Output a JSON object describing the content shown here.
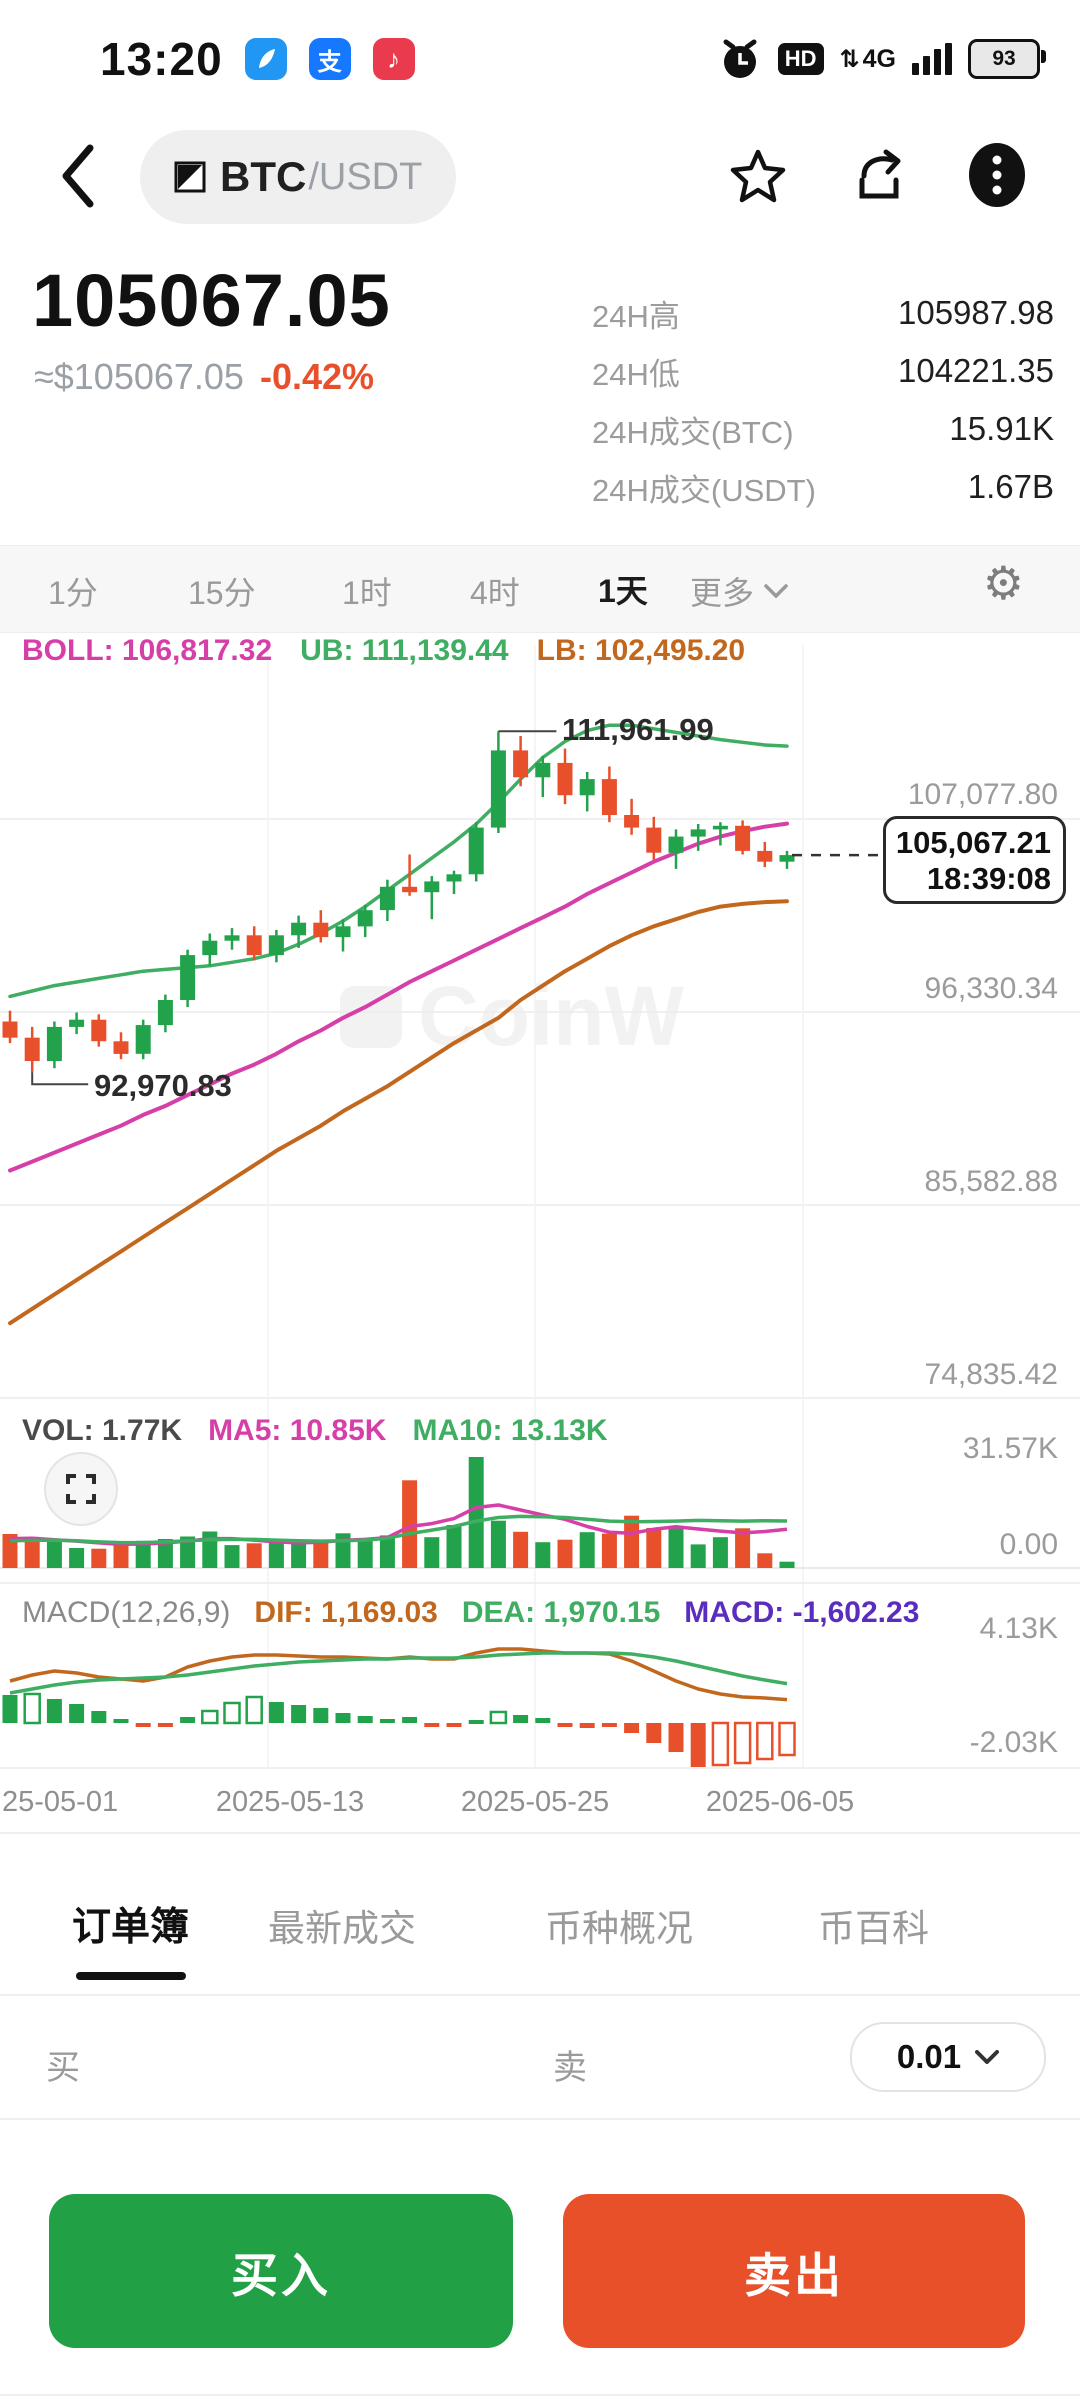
{
  "status_bar": {
    "time": "13:20",
    "app_icons": [
      "feather",
      "alipay",
      "music"
    ],
    "alipay_glyph": "支",
    "music_glyph": "♪",
    "hd": "HD",
    "network": "4G",
    "updown": "⇅",
    "battery": "93"
  },
  "nav": {
    "pair_base": "BTC",
    "pair_quote": "/USDT"
  },
  "price": {
    "last": "105067.05",
    "approx": "≈$105067.05",
    "change": "-0.42%"
  },
  "stats": [
    {
      "label": "24H高",
      "value": "105987.98"
    },
    {
      "label": "24H低",
      "value": "104221.35"
    },
    {
      "label": "24H成交(BTC)",
      "value": "15.91K"
    },
    {
      "label": "24H成交(USDT)",
      "value": "1.67B"
    }
  ],
  "intervals": {
    "items": [
      "1分",
      "15分",
      "1时",
      "4时",
      "1天",
      "更多"
    ],
    "active": "1天"
  },
  "legend_boll": {
    "boll": "BOLL: 106,817.32",
    "ub": "UB: 111,139.44",
    "lb": "LB: 102,495.20"
  },
  "legend_vol": {
    "vol": "VOL: 1.77K",
    "ma5": "MA5: 10.85K",
    "ma10": "MA10: 13.13K"
  },
  "legend_macd": {
    "name": "MACD(12,26,9)",
    "dif": "DIF: 1,169.03",
    "dea": "DEA: 1,970.15",
    "macd": "MACD: -1,602.23"
  },
  "annotations": {
    "high": "111,961.99",
    "low": "92,970.83",
    "current_price": "105,067.21",
    "current_time": "18:39:08"
  },
  "price_axis_labels": [
    "107,077.80",
    "96,330.34",
    "85,582.88",
    "74,835.42"
  ],
  "vol_axis_labels": [
    "31.57K",
    "0.00"
  ],
  "macd_axis_labels": [
    "4.13K",
    "-2.03K"
  ],
  "x_axis_labels": [
    "25-05-01",
    "2025-05-13",
    "2025-05-25",
    "2025-06-05"
  ],
  "watermark": "CoinW",
  "bottom_tabs": {
    "items": [
      "订单簿",
      "最新成交",
      "币种概况",
      "币百科"
    ],
    "active": "订单簿"
  },
  "orderbook_bar": {
    "buy": "买",
    "sell": "卖",
    "depth": "0.01"
  },
  "actions": {
    "buy": "买入",
    "sell": "卖出"
  },
  "colors": {
    "up": "#21A24B",
    "down": "#E8502C",
    "magenta": "#D63FA8",
    "band_green": "#3FAE63",
    "orange": "#C2681E",
    "purple": "#5B2DBE",
    "grid": "#ececec",
    "grid_v": "#f2f2f2",
    "buy_btn": "#21A046",
    "sell_btn": "#E8502A",
    "change_red": "#E8502C"
  },
  "chart_data": {
    "type": "candlestick+volume+macd",
    "x_axis": [
      "25-05-01",
      "2025-05-13",
      "2025-05-25",
      "2025-06-05"
    ],
    "price_gridlines": [
      107077.8,
      96330.34,
      85582.88,
      74835.42
    ],
    "annotations_num": {
      "high": 111961.99,
      "low": 92970.83,
      "current": 105067.21,
      "high_index": 22,
      "low_index": 1
    },
    "candles": [
      [
        95800,
        96400,
        94600,
        94900
      ],
      [
        94900,
        95500,
        92970.83,
        93600
      ],
      [
        93600,
        95800,
        93200,
        95500
      ],
      [
        95500,
        96300,
        95100,
        95900
      ],
      [
        95900,
        96200,
        94400,
        94700
      ],
      [
        94700,
        95200,
        93700,
        94000
      ],
      [
        94000,
        95900,
        93700,
        95600
      ],
      [
        95600,
        97300,
        95200,
        97000
      ],
      [
        97000,
        99800,
        96600,
        99500
      ],
      [
        99500,
        100700,
        98900,
        100300
      ],
      [
        100300,
        101000,
        99800,
        100600
      ],
      [
        100600,
        101100,
        99200,
        99500
      ],
      [
        99500,
        100900,
        99100,
        100600
      ],
      [
        100600,
        101700,
        99900,
        101300
      ],
      [
        101300,
        102000,
        100200,
        100500
      ],
      [
        100500,
        101500,
        99700,
        101100
      ],
      [
        101100,
        102300,
        100500,
        102000
      ],
      [
        102000,
        103700,
        101400,
        103300
      ],
      [
        103300,
        105100,
        102800,
        103000
      ],
      [
        103000,
        103900,
        101500,
        103600
      ],
      [
        103600,
        104200,
        102900,
        104000
      ],
      [
        104000,
        106900,
        103600,
        106600
      ],
      [
        106600,
        111961.99,
        106300,
        110900
      ],
      [
        110900,
        111700,
        108900,
        109400
      ],
      [
        109400,
        110600,
        108300,
        110200
      ],
      [
        110200,
        111000,
        107900,
        108400
      ],
      [
        108400,
        109700,
        107500,
        109300
      ],
      [
        109300,
        110000,
        106900,
        107300
      ],
      [
        107300,
        108200,
        106200,
        106600
      ],
      [
        106600,
        107200,
        104800,
        105200
      ],
      [
        105200,
        106500,
        104300,
        106100
      ],
      [
        106100,
        106800,
        105300,
        106500
      ],
      [
        106500,
        106900,
        105600,
        106700
      ],
      [
        106700,
        107000,
        105100,
        105300
      ],
      [
        105300,
        105800,
        104400,
        104700
      ],
      [
        104700,
        105300,
        104300,
        105067.21
      ]
    ],
    "boll": {
      "ub": [
        97.2,
        97.5,
        97.8,
        98.0,
        98.2,
        98.4,
        98.6,
        98.7,
        98.8,
        98.9,
        99.1,
        99.3,
        99.6,
        100.1,
        100.7,
        101.4,
        102.2,
        103.1,
        104.0,
        104.9,
        105.8,
        106.8,
        108.0,
        109.3,
        110.5,
        111.4,
        112.0,
        112.3,
        112.3,
        112.1,
        111.9,
        111.7,
        111.5,
        111.35,
        111.2,
        111.14
      ],
      "mid": [
        87.5,
        88.0,
        88.5,
        89.0,
        89.5,
        90.0,
        90.6,
        91.1,
        91.7,
        92.3,
        92.9,
        93.4,
        94.0,
        94.7,
        95.3,
        96.0,
        96.6,
        97.3,
        98.0,
        98.6,
        99.2,
        99.8,
        100.4,
        101.0,
        101.6,
        102.2,
        102.9,
        103.5,
        104.1,
        104.7,
        105.2,
        105.7,
        106.1,
        106.4,
        106.65,
        106.82
      ],
      "lb": [
        79.0,
        79.8,
        80.6,
        81.4,
        82.2,
        83.0,
        83.8,
        84.6,
        85.4,
        86.2,
        87.0,
        87.8,
        88.6,
        89.3,
        90.0,
        90.8,
        91.5,
        92.2,
        93.0,
        93.8,
        94.6,
        95.3,
        96.0,
        97.0,
        97.8,
        98.6,
        99.3,
        100.0,
        100.6,
        101.1,
        101.5,
        101.9,
        102.2,
        102.35,
        102.45,
        102.5
      ]
    },
    "volume": {
      "unit": "K",
      "values": [
        9.5,
        8.7,
        8.0,
        5.6,
        5.4,
        7.0,
        7.6,
        8.1,
        8.8,
        10.2,
        6.4,
        6.9,
        7.3,
        6.7,
        7.5,
        9.7,
        8.3,
        9.1,
        24.5,
        8.6,
        12.0,
        31.0,
        13.2,
        10.1,
        7.2,
        7.9,
        10.0,
        9.6,
        14.6,
        11.2,
        11.6,
        6.6,
        8.6,
        11.1,
        4.1,
        1.77
      ],
      "ma5": [
        8.2,
        8.3,
        7.9,
        7.5,
        7.0,
        6.6,
        6.7,
        7.0,
        7.5,
        8.2,
        8.2,
        7.8,
        7.3,
        7.0,
        7.2,
        7.7,
        8.0,
        8.5,
        11.6,
        12.4,
        13.8,
        16.9,
        17.6,
        16.2,
        14.8,
        13.6,
        11.6,
        10.0,
        9.7,
        10.8,
        11.5,
        10.9,
        10.3,
        9.8,
        10.2,
        10.85
      ],
      "ma10": [
        7.6,
        7.7,
        7.8,
        7.6,
        7.3,
        7.1,
        7.1,
        7.3,
        7.6,
        7.9,
        8.0,
        8.0,
        7.8,
        7.6,
        7.5,
        7.6,
        7.8,
        8.3,
        9.6,
        10.6,
        11.6,
        13.1,
        14.1,
        14.4,
        14.3,
        14.1,
        13.6,
        13.1,
        12.9,
        13.0,
        13.1,
        13.3,
        13.2,
        13.1,
        13.2,
        13.13
      ],
      "scale_max": 31.57
    },
    "macd": {
      "unit": "K",
      "hist": [
        1.4,
        1.45,
        1.2,
        0.95,
        0.6,
        0.2,
        -0.1,
        -0.2,
        0.3,
        0.6,
        1.0,
        1.3,
        1.05,
        0.9,
        0.75,
        0.5,
        0.35,
        0.2,
        0.3,
        -0.1,
        -0.1,
        0.15,
        0.55,
        0.4,
        0.25,
        -0.15,
        -0.25,
        -0.18,
        -0.5,
        -1.0,
        -1.45,
        -2.2,
        -2.1,
        -2.0,
        -1.8,
        -1.602
      ],
      "hollow": [
        false,
        true,
        false,
        false,
        false,
        false,
        false,
        false,
        false,
        true,
        true,
        true,
        false,
        false,
        false,
        false,
        false,
        false,
        false,
        false,
        false,
        false,
        true,
        false,
        false,
        false,
        false,
        false,
        false,
        false,
        false,
        false,
        true,
        true,
        true,
        true
      ],
      "dif": [
        2.1,
        2.4,
        2.6,
        2.5,
        2.3,
        2.2,
        2.1,
        2.3,
        2.8,
        3.1,
        3.3,
        3.4,
        3.4,
        3.35,
        3.3,
        3.3,
        3.25,
        3.2,
        3.3,
        3.2,
        3.2,
        3.5,
        3.7,
        3.7,
        3.6,
        3.5,
        3.5,
        3.45,
        3.1,
        2.6,
        2.1,
        1.7,
        1.45,
        1.3,
        1.25,
        1.169
      ],
      "dea": [
        1.5,
        1.7,
        1.9,
        2.05,
        2.15,
        2.2,
        2.25,
        2.3,
        2.4,
        2.55,
        2.7,
        2.85,
        2.95,
        3.05,
        3.1,
        3.15,
        3.2,
        3.2,
        3.25,
        3.25,
        3.25,
        3.3,
        3.4,
        3.45,
        3.5,
        3.5,
        3.5,
        3.5,
        3.45,
        3.3,
        3.1,
        2.85,
        2.6,
        2.35,
        2.15,
        1.97
      ],
      "scale_top": 4.13,
      "scale_bottom": -2.03
    }
  }
}
